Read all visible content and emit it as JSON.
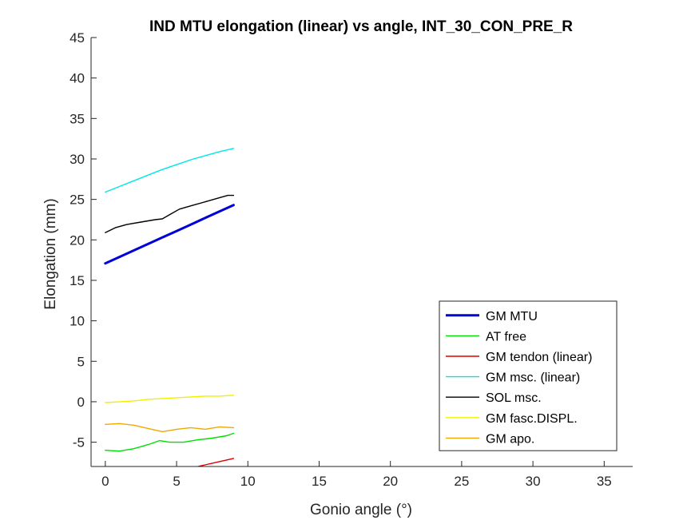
{
  "chart_data": {
    "type": "line",
    "title": "IND MTU elongation (linear) vs angle, INT_30_CON_PRE_R",
    "xlabel": "Gonio angle (°)",
    "ylabel": "Elongation (mm)",
    "xlim": [
      -1,
      37
    ],
    "ylim": [
      -8,
      45
    ],
    "xticks": [
      0,
      5,
      10,
      15,
      20,
      25,
      30,
      35
    ],
    "yticks": [
      -5,
      0,
      5,
      10,
      15,
      20,
      25,
      30,
      35,
      40,
      45
    ],
    "grid": false,
    "legend_position": "bottom-right",
    "series": [
      {
        "name": "GM MTU",
        "color": "#0000d9",
        "linewidth": 3,
        "x": [
          0,
          1,
          2,
          3,
          4,
          5,
          6,
          7,
          8,
          9
        ],
        "y": [
          17.1,
          17.9,
          18.7,
          19.5,
          20.3,
          21.1,
          21.9,
          22.7,
          23.5,
          24.3
        ]
      },
      {
        "name": "AT free",
        "color": "#00e000",
        "linewidth": 1.4,
        "x": [
          0,
          1,
          2,
          3,
          3.8,
          4.5,
          5.5,
          6.5,
          7.5,
          8.5,
          9
        ],
        "y": [
          -6.0,
          -6.1,
          -5.8,
          -5.3,
          -4.8,
          -5.0,
          -5.0,
          -4.7,
          -4.5,
          -4.2,
          -3.9
        ]
      },
      {
        "name": "GM tendon (linear)",
        "color": "#e00000",
        "linewidth": 1.4,
        "x": [
          6.5,
          7,
          7.5,
          8,
          8.5,
          9
        ],
        "y": [
          -8.0,
          -7.8,
          -7.6,
          -7.4,
          -7.2,
          -7.0
        ]
      },
      {
        "name": "GM msc. (linear)",
        "color": "#00e6e6",
        "linewidth": 1.4,
        "x": [
          0,
          1,
          2,
          3,
          4,
          5,
          6,
          7,
          8,
          9
        ],
        "y": [
          25.9,
          26.6,
          27.3,
          28.0,
          28.7,
          29.3,
          29.9,
          30.4,
          30.9,
          31.3
        ]
      },
      {
        "name": "SOL msc.",
        "color": "#000000",
        "linewidth": 1.4,
        "x": [
          0,
          0.7,
          1.5,
          2.5,
          3.5,
          4,
          4.5,
          5.2,
          6,
          7,
          8,
          8.6,
          9
        ],
        "y": [
          20.9,
          21.5,
          21.9,
          22.2,
          22.5,
          22.6,
          23.1,
          23.8,
          24.2,
          24.7,
          25.2,
          25.5,
          25.5
        ]
      },
      {
        "name": "GM fasc.DISPL.",
        "color": "#f0f000",
        "linewidth": 1.4,
        "x": [
          0,
          1,
          2,
          3,
          4,
          5,
          6,
          7,
          8,
          9
        ],
        "y": [
          -0.1,
          0.0,
          0.1,
          0.3,
          0.4,
          0.5,
          0.6,
          0.7,
          0.7,
          0.8
        ]
      },
      {
        "name": "GM apo.",
        "color": "#f0a800",
        "linewidth": 1.4,
        "x": [
          0,
          1,
          2,
          3,
          4,
          5,
          6,
          7,
          8,
          9
        ],
        "y": [
          -2.8,
          -2.7,
          -2.9,
          -3.3,
          -3.7,
          -3.4,
          -3.2,
          -3.4,
          -3.1,
          -3.2
        ]
      }
    ]
  }
}
